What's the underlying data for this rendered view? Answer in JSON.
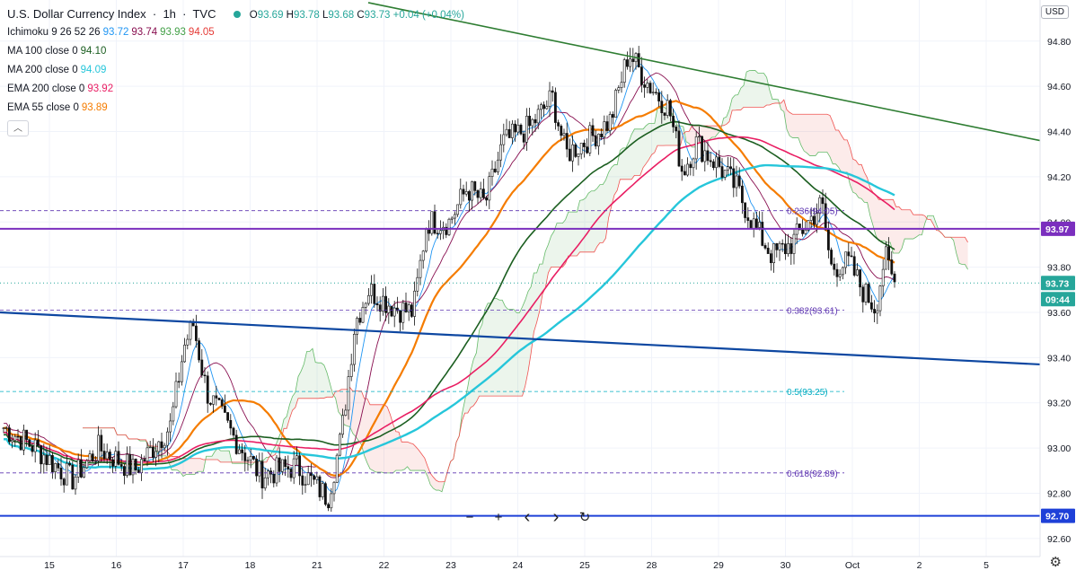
{
  "header": {
    "symbol": "U.S. Dollar Currency Index",
    "interval": "1h",
    "source": "TVC",
    "ohlc": {
      "o_label": "O",
      "o": "93.69",
      "h_label": "H",
      "h": "93.78",
      "l_label": "L",
      "l": "93.68",
      "c_label": "C",
      "c": "93.73",
      "change": "+0.04 (+0.04%)"
    },
    "currency_button": "USD"
  },
  "indicators": [
    {
      "label": "Ichimoku 9 26 52 26",
      "values": [
        {
          "v": "93.72",
          "color": "#2196f3"
        },
        {
          "v": "93.74",
          "color": "#880e4f"
        },
        {
          "v": "93.93",
          "color": "#43a047"
        },
        {
          "v": "94.05",
          "color": "#e53935"
        }
      ]
    },
    {
      "label": "MA 100 close 0",
      "values": [
        {
          "v": "94.10",
          "color": "#1b5e20"
        }
      ]
    },
    {
      "label": "MA 200 close 0",
      "values": [
        {
          "v": "94.09",
          "color": "#26c6da"
        }
      ]
    },
    {
      "label": "EMA 200 close 0",
      "values": [
        {
          "v": "93.92",
          "color": "#e91e63"
        }
      ]
    },
    {
      "label": "EMA 55 close 0",
      "values": [
        {
          "v": "93.89",
          "color": "#f57c00"
        }
      ]
    }
  ],
  "collapse_glyph": "︿",
  "nav": {
    "zoom_out": "−",
    "zoom_in": "+",
    "left": "‹",
    "right": "›",
    "reset": "↻"
  },
  "settings_glyph": "⚙",
  "chart_data": {
    "type": "candlestick",
    "title": "U.S. Dollar Currency Index · 1h · TVC",
    "ylim": [
      92.52,
      94.95
    ],
    "y_ticks": [
      "94.80",
      "94.60",
      "94.40",
      "94.20",
      "94.00",
      "93.80",
      "93.60",
      "93.40",
      "93.20",
      "93.00",
      "92.80",
      "92.60"
    ],
    "x_ticks": [
      "15",
      "16",
      "17",
      "18",
      "21",
      "22",
      "23",
      "24",
      "25",
      "28",
      "29",
      "30",
      "Oct",
      "2",
      "5"
    ],
    "price_labels": [
      {
        "text": "93.97",
        "value": 93.97,
        "bg": "#7b2fbe"
      },
      {
        "text": "93.73",
        "value": 93.73,
        "bg": "#26a69a"
      },
      {
        "text": "09:44",
        "value": 93.63,
        "bg": "#26a69a"
      },
      {
        "text": "92.70",
        "value": 92.7,
        "bg": "#1e40d8"
      }
    ],
    "fibonacci": [
      {
        "level": "0.236",
        "value": 94.05,
        "label": "0.236(94.05)",
        "color": "#5e35b1"
      },
      {
        "level": "0.382",
        "value": 93.61,
        "label": "0.382(93.61)",
        "color": "#5e35b1"
      },
      {
        "level": "0.5",
        "value": 93.25,
        "label": "0.5(93.25)",
        "color": "#00acc1"
      },
      {
        "level": "0.618",
        "value": 92.89,
        "label": "0.618(92.89)",
        "color": "#5e35b1"
      }
    ],
    "horizontal_lines": [
      {
        "value": 93.97,
        "color": "#7b2fbe"
      },
      {
        "value": 92.7,
        "color": "#1e40d8"
      }
    ],
    "last_price": 93.73,
    "key_prices": {
      "high": 94.75,
      "low": 92.76,
      "last": 93.73
    }
  }
}
